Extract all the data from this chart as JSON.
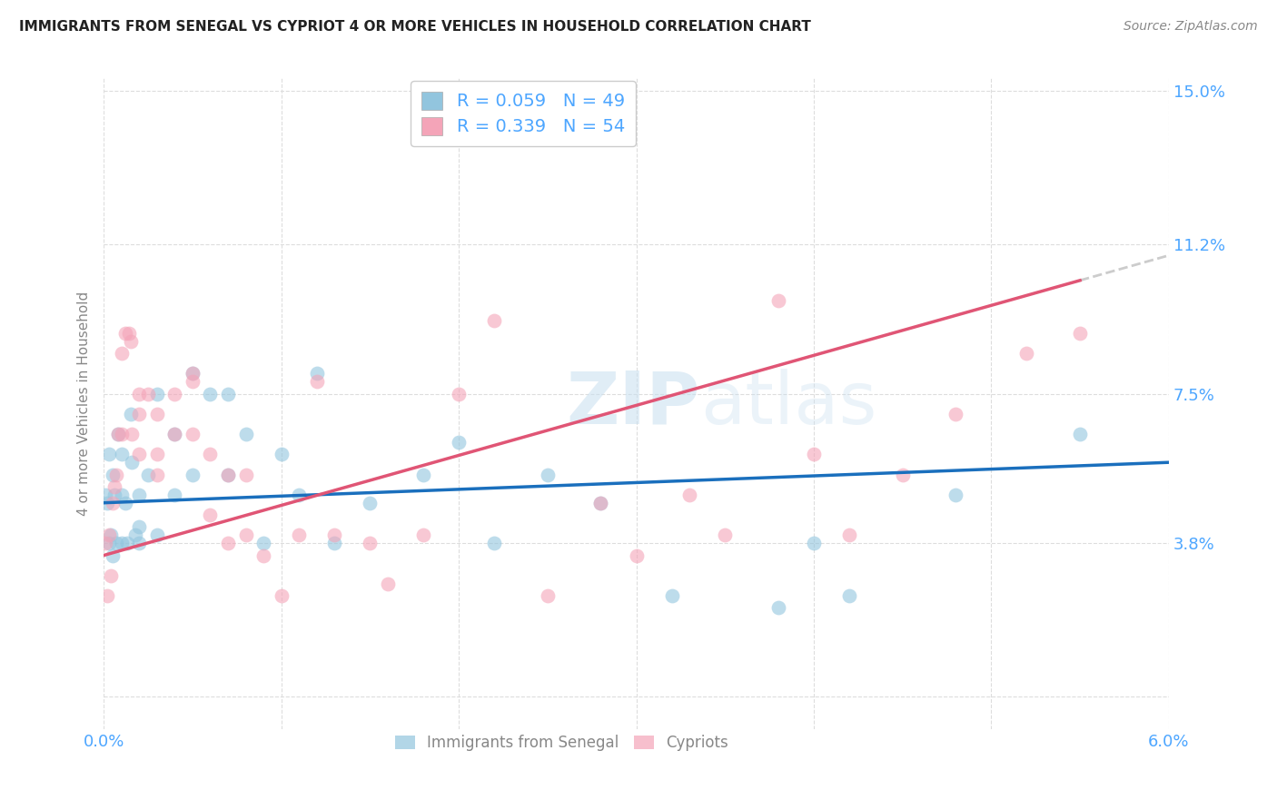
{
  "title": "IMMIGRANTS FROM SENEGAL VS CYPRIOT 4 OR MORE VEHICLES IN HOUSEHOLD CORRELATION CHART",
  "source": "Source: ZipAtlas.com",
  "ylabel": "4 or more Vehicles in Household",
  "xlim": [
    0.0,
    0.06
  ],
  "ylim": [
    0.0,
    0.15
  ],
  "xticks": [
    0.0,
    0.01,
    0.02,
    0.03,
    0.04,
    0.05,
    0.06
  ],
  "xticklabels": [
    "0.0%",
    "",
    "",
    "",
    "",
    "",
    "6.0%"
  ],
  "yticks": [
    0.0,
    0.038,
    0.075,
    0.112,
    0.15
  ],
  "yticklabels": [
    "",
    "3.8%",
    "7.5%",
    "11.2%",
    "15.0%"
  ],
  "legend1_R": "0.059",
  "legend1_N": "49",
  "legend2_R": "0.339",
  "legend2_N": "54",
  "blue_color": "#92c5de",
  "pink_color": "#f4a4b8",
  "line_blue": "#1a6fbd",
  "line_pink": "#e05575",
  "line_gray": "#cccccc",
  "watermark_color": "#d8e8f0",
  "tick_color": "#4da6ff",
  "senegal_x": [
    0.0001,
    0.0002,
    0.0003,
    0.0003,
    0.0004,
    0.0005,
    0.0005,
    0.0006,
    0.0007,
    0.0008,
    0.001,
    0.001,
    0.001,
    0.0012,
    0.0013,
    0.0015,
    0.0016,
    0.0018,
    0.002,
    0.002,
    0.002,
    0.0025,
    0.003,
    0.003,
    0.004,
    0.004,
    0.005,
    0.005,
    0.006,
    0.007,
    0.007,
    0.008,
    0.009,
    0.01,
    0.011,
    0.012,
    0.013,
    0.015,
    0.018,
    0.02,
    0.022,
    0.025,
    0.028,
    0.032,
    0.038,
    0.04,
    0.042,
    0.048,
    0.055
  ],
  "senegal_y": [
    0.05,
    0.048,
    0.06,
    0.038,
    0.04,
    0.055,
    0.035,
    0.05,
    0.038,
    0.065,
    0.06,
    0.05,
    0.038,
    0.048,
    0.038,
    0.07,
    0.058,
    0.04,
    0.05,
    0.038,
    0.042,
    0.055,
    0.075,
    0.04,
    0.065,
    0.05,
    0.08,
    0.055,
    0.075,
    0.075,
    0.055,
    0.065,
    0.038,
    0.06,
    0.05,
    0.08,
    0.038,
    0.048,
    0.055,
    0.063,
    0.038,
    0.055,
    0.048,
    0.025,
    0.022,
    0.038,
    0.025,
    0.05,
    0.065
  ],
  "cypriot_x": [
    0.0001,
    0.0002,
    0.0003,
    0.0004,
    0.0005,
    0.0006,
    0.0007,
    0.0008,
    0.001,
    0.001,
    0.0012,
    0.0014,
    0.0015,
    0.0016,
    0.002,
    0.002,
    0.002,
    0.0025,
    0.003,
    0.003,
    0.003,
    0.004,
    0.004,
    0.005,
    0.005,
    0.005,
    0.006,
    0.006,
    0.007,
    0.007,
    0.008,
    0.008,
    0.009,
    0.01,
    0.011,
    0.012,
    0.013,
    0.015,
    0.016,
    0.018,
    0.02,
    0.022,
    0.025,
    0.028,
    0.03,
    0.033,
    0.035,
    0.038,
    0.04,
    0.042,
    0.045,
    0.048,
    0.052,
    0.055
  ],
  "cypriot_y": [
    0.038,
    0.025,
    0.04,
    0.03,
    0.048,
    0.052,
    0.055,
    0.065,
    0.085,
    0.065,
    0.09,
    0.09,
    0.088,
    0.065,
    0.075,
    0.07,
    0.06,
    0.075,
    0.07,
    0.06,
    0.055,
    0.075,
    0.065,
    0.08,
    0.078,
    0.065,
    0.06,
    0.045,
    0.038,
    0.055,
    0.055,
    0.04,
    0.035,
    0.025,
    0.04,
    0.078,
    0.04,
    0.038,
    0.028,
    0.04,
    0.075,
    0.093,
    0.025,
    0.048,
    0.035,
    0.05,
    0.04,
    0.098,
    0.06,
    0.04,
    0.055,
    0.07,
    0.085,
    0.09
  ]
}
